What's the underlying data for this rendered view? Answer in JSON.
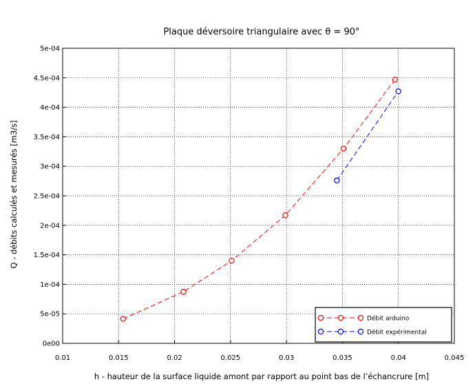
{
  "chart_data": {
    "type": "line",
    "title": "Plaque déversoire triangulaire avec θ = 90°",
    "xlabel": "h - hauteur de la surface liquide amont par rapport au point bas de l’échancrure [m]",
    "ylabel": "Q - débits calculés et mesurés [m3/s]",
    "xlim": [
      0.01,
      0.045
    ],
    "ylim": [
      0,
      0.0005
    ],
    "xticks": [
      0.01,
      0.015,
      0.02,
      0.025,
      0.03,
      0.035,
      0.04,
      0.045
    ],
    "xtick_labels": [
      "0.01",
      "0.015",
      "0.02",
      "0.025",
      "0.03",
      "0.035",
      "0.04",
      "0.045"
    ],
    "yticks": [
      0,
      5e-05,
      0.0001,
      0.00015,
      0.0002,
      0.00025,
      0.0003,
      0.00035,
      0.0004,
      0.00045,
      0.0005
    ],
    "ytick_labels": [
      "0e00",
      "5e-05",
      "1e-04",
      "1.5e-04",
      "2e-04",
      "2.5e-04",
      "3e-04",
      "3.5e-04",
      "4e-04",
      "4.5e-04",
      "5e-04"
    ],
    "grid": true,
    "legend_position": "bottom-right",
    "series": [
      {
        "name": "Débit arduino",
        "color": "#ff0000",
        "line_style": "dashed",
        "marker": "circle",
        "points": [
          {
            "x": 0.0154,
            "y": 4.15e-05
          },
          {
            "x": 0.0208,
            "y": 8.75e-05
          },
          {
            "x": 0.0251,
            "y": 0.00014
          },
          {
            "x": 0.0299,
            "y": 0.000217
          },
          {
            "x": 0.0351,
            "y": 0.00033
          },
          {
            "x": 0.0397,
            "y": 0.000447
          }
        ]
      },
      {
        "name": "Débit expérimental",
        "color": "#0000ff",
        "line_style": "dashed",
        "marker": "circle",
        "points": [
          {
            "x": 0.0345,
            "y": 0.000276
          },
          {
            "x": 0.04,
            "y": 0.000427
          }
        ]
      }
    ]
  }
}
